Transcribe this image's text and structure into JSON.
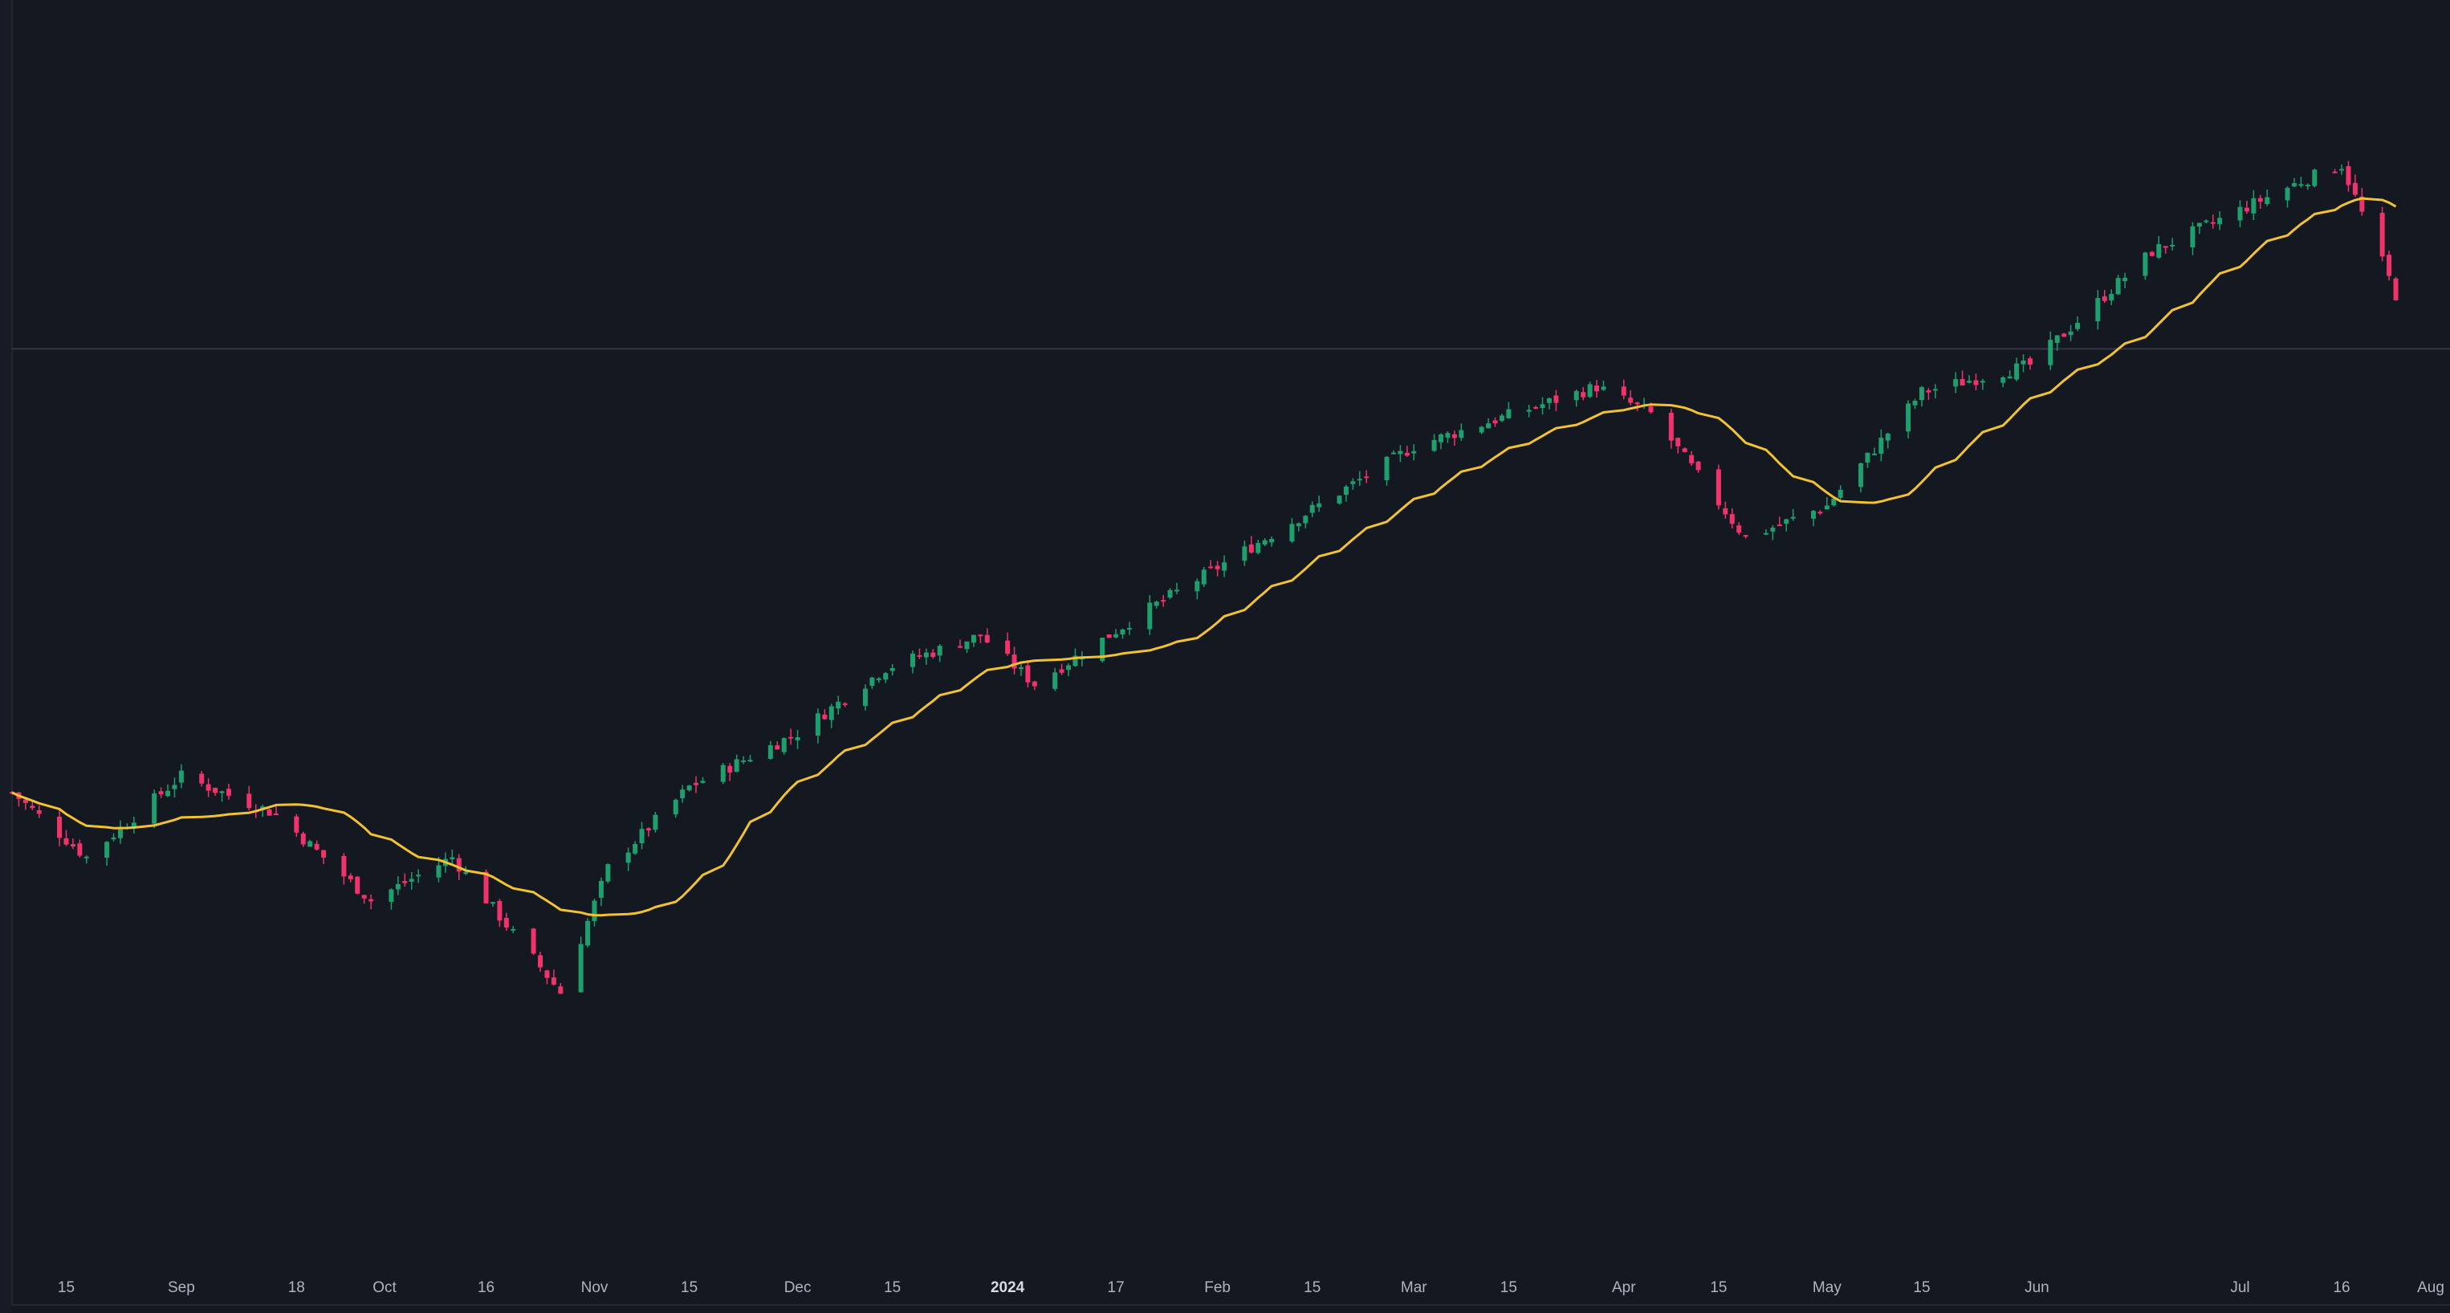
{
  "chart_data": {
    "type": "candlestick",
    "overlay": "moving-average line",
    "title": "",
    "xlabel": "",
    "ylabel": "",
    "x_range": [
      "2023-08-07",
      "2024-08-01"
    ],
    "y_range_approx": [
      400,
      570
    ],
    "price_line_level": 530,
    "grid": false,
    "legend": "none",
    "colors": {
      "background": "#141821",
      "up": "#1f9e6e",
      "down": "#f0336b",
      "ma_line": "#f2c230",
      "price_line": "#3a3448",
      "axis_text": "#aeb4c0",
      "axis_line": "#232833"
    },
    "x_ticks": [
      {
        "date": "2023-08-15",
        "label": "15"
      },
      {
        "date": "2023-09-01",
        "label": "Sep"
      },
      {
        "date": "2023-09-18",
        "label": "18"
      },
      {
        "date": "2023-10-01",
        "label": "Oct"
      },
      {
        "date": "2023-10-16",
        "label": "16"
      },
      {
        "date": "2023-11-01",
        "label": "Nov"
      },
      {
        "date": "2023-11-15",
        "label": "15"
      },
      {
        "date": "2023-12-01",
        "label": "Dec"
      },
      {
        "date": "2023-12-15",
        "label": "15"
      },
      {
        "date": "2024-01-01",
        "label": "2024",
        "emphasis": true
      },
      {
        "date": "2024-01-17",
        "label": "17"
      },
      {
        "date": "2024-02-01",
        "label": "Feb"
      },
      {
        "date": "2024-02-15",
        "label": "15"
      },
      {
        "date": "2024-03-01",
        "label": "Mar"
      },
      {
        "date": "2024-03-15",
        "label": "15"
      },
      {
        "date": "2024-04-01",
        "label": "Apr"
      },
      {
        "date": "2024-04-15",
        "label": "15"
      },
      {
        "date": "2024-05-01",
        "label": "May"
      },
      {
        "date": "2024-05-15",
        "label": "15"
      },
      {
        "date": "2024-06-01",
        "label": "Jun"
      },
      {
        "date": "2024-07-01",
        "label": "Jul"
      },
      {
        "date": "2024-07-16",
        "label": "16"
      },
      {
        "date": "2024-08-01",
        "label": "Aug"
      }
    ],
    "key_points": [
      {
        "date": "2023-08-07",
        "close": 448
      },
      {
        "date": "2023-08-18",
        "close": 436
      },
      {
        "date": "2023-09-01",
        "close": 451
      },
      {
        "date": "2023-09-15",
        "close": 444
      },
      {
        "date": "2023-09-29",
        "close": 428
      },
      {
        "date": "2023-10-11",
        "close": 436
      },
      {
        "date": "2023-10-27",
        "close": 411
      },
      {
        "date": "2023-11-03",
        "close": 434
      },
      {
        "date": "2023-11-15",
        "close": 449
      },
      {
        "date": "2023-12-01",
        "close": 459
      },
      {
        "date": "2023-12-14",
        "close": 471
      },
      {
        "date": "2023-12-28",
        "close": 477
      },
      {
        "date": "2024-01-05",
        "close": 468
      },
      {
        "date": "2024-01-22",
        "close": 482
      },
      {
        "date": "2024-02-12",
        "close": 498
      },
      {
        "date": "2024-03-01",
        "close": 512
      },
      {
        "date": "2024-03-28",
        "close": 523
      },
      {
        "date": "2024-04-05",
        "close": 518
      },
      {
        "date": "2024-04-19",
        "close": 495
      },
      {
        "date": "2024-05-01",
        "close": 501
      },
      {
        "date": "2024-05-15",
        "close": 522
      },
      {
        "date": "2024-05-31",
        "close": 527
      },
      {
        "date": "2024-06-18",
        "close": 548
      },
      {
        "date": "2024-07-10",
        "close": 561
      },
      {
        "date": "2024-07-16",
        "close": 564
      },
      {
        "date": "2024-07-24",
        "close": 540
      }
    ]
  }
}
